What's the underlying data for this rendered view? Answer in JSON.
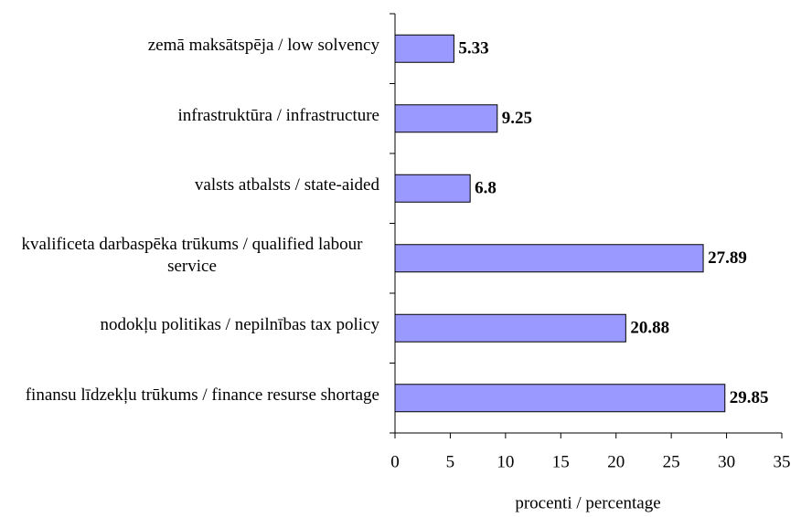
{
  "chart_data": {
    "type": "bar",
    "orientation": "horizontal",
    "categories": [
      "zemā maksātspēja / low solvency",
      "infrastruktūra / infrastructure",
      "valsts atbalsts / state-aided",
      "kvalificeta darbaspēka trūkums / qualified labour service",
      "nodokļu politikas / nepilnības tax policy",
      "finansu līdzekļu trūkums / finance resurse shortage"
    ],
    "values": [
      5.33,
      9.25,
      6.8,
      27.89,
      20.88,
      29.85
    ],
    "color": "#9999ff",
    "xlabel": "procenti / percentage",
    "xlim": [
      0,
      35
    ],
    "xticks": [
      0,
      5,
      10,
      15,
      20,
      25,
      30,
      35
    ],
    "grid": false
  }
}
